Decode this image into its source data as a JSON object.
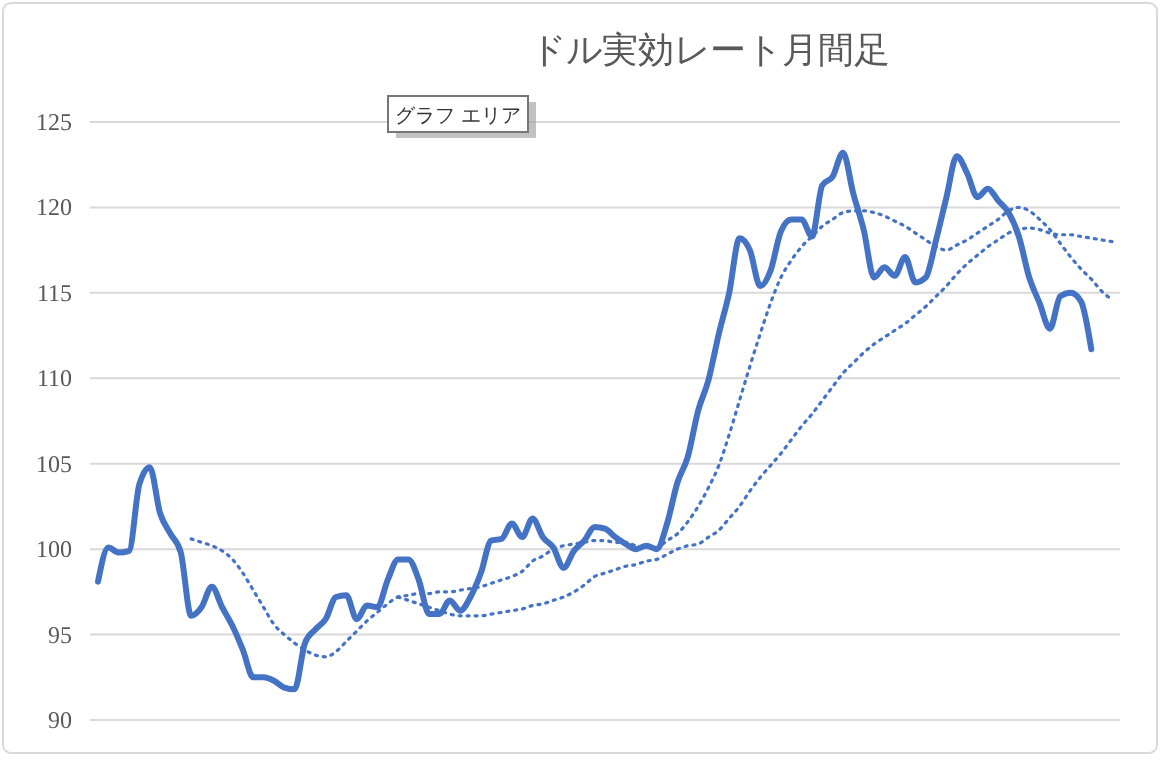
{
  "chart_data": {
    "type": "line",
    "title": "ドル実効レート月間足",
    "categories": [
      null,
      null,
      null,
      null,
      null,
      null,
      null,
      null,
      null,
      null,
      null,
      null,
      null,
      null,
      null,
      null,
      null,
      null,
      null,
      null,
      null,
      null,
      null,
      null,
      null,
      null,
      null,
      null,
      null,
      null,
      null,
      null,
      null,
      null,
      null,
      null,
      null,
      null,
      null,
      null,
      null,
      null,
      null,
      null,
      null,
      null,
      null,
      null,
      null,
      null,
      null,
      null,
      null,
      null,
      null,
      null,
      null,
      null,
      null,
      null,
      null,
      null,
      null,
      null,
      null,
      null,
      null,
      null,
      null,
      null,
      null,
      null,
      null,
      null,
      null,
      null,
      null,
      null,
      null,
      null,
      null,
      null,
      null,
      null,
      null,
      null,
      null,
      null,
      null,
      null,
      null,
      null,
      null,
      null,
      null,
      null,
      null,
      null,
      null
    ],
    "series": [
      {
        "color": "#4472c4",
        "line_style": "solid",
        "values": [
          98.1,
          100.1,
          99.8,
          99.9,
          103.8,
          104.8,
          102.1,
          100.9,
          99.8,
          96.1,
          96.6,
          97.8,
          96.6,
          95.5,
          94.1,
          92.5,
          92.5,
          92.3,
          91.9,
          91.8,
          94.5,
          95.3,
          95.9,
          97.2,
          97.3,
          95.9,
          96.7,
          96.6,
          98.2,
          99.4,
          99.4,
          98.2,
          96.2,
          96.2,
          97.0,
          96.4,
          97.2,
          98.6,
          100.5,
          100.6,
          101.5,
          100.7,
          101.8,
          100.7,
          100.1,
          98.9,
          99.9,
          100.5,
          101.3,
          101.2,
          100.7,
          100.3,
          100.0,
          100.2,
          100.0,
          101.5,
          103.9,
          105.4,
          108.1,
          109.9,
          112.6,
          115.0,
          118.2,
          117.5,
          115.4,
          116.3,
          118.6,
          119.3,
          119.3,
          118.3,
          121.3,
          121.8,
          123.2,
          120.8,
          118.7,
          115.9,
          116.5,
          116.0,
          117.1,
          115.6,
          115.9,
          118.1,
          120.6,
          123.0,
          122.0,
          120.6,
          121.1,
          120.4,
          119.7,
          118.3,
          115.9,
          114.4,
          112.9,
          114.8,
          115.0,
          114.5,
          111.7,
          null,
          null
        ]
      },
      {
        "color": "#4472c4",
        "line_style": "dotted",
        "values": [
          null,
          null,
          null,
          null,
          null,
          null,
          null,
          null,
          null,
          100.6,
          100.4,
          100.2,
          99.9,
          99.4,
          98.6,
          97.6,
          96.6,
          95.6,
          95.0,
          94.5,
          94.1,
          93.8,
          93.7,
          94.0,
          94.6,
          95.2,
          95.8,
          96.3,
          96.8,
          97.2,
          97.3,
          97.4,
          97.4,
          97.5,
          97.5,
          97.6,
          97.7,
          97.8,
          98.0,
          98.2,
          98.4,
          98.7,
          99.3,
          99.6,
          100.0,
          100.2,
          100.3,
          100.4,
          100.5,
          100.5,
          100.4,
          100.4,
          100.2,
          100.1,
          100.1,
          100.5,
          100.9,
          101.6,
          102.5,
          103.6,
          104.9,
          106.7,
          108.7,
          110.7,
          112.6,
          114.4,
          115.9,
          116.9,
          117.7,
          118.3,
          118.9,
          119.3,
          119.7,
          119.8,
          119.8,
          119.7,
          119.5,
          119.2,
          118.9,
          118.5,
          118.1,
          117.7,
          117.5,
          117.8,
          118.1,
          118.5,
          118.9,
          119.3,
          119.8,
          120.0,
          119.8,
          119.3,
          118.7,
          117.9,
          117.1,
          116.4,
          115.8,
          115.1,
          114.6
        ]
      },
      {
        "color": "#4472c4",
        "line_style": "dotted",
        "values": [
          null,
          null,
          null,
          null,
          null,
          null,
          null,
          null,
          null,
          null,
          null,
          null,
          null,
          null,
          null,
          null,
          null,
          null,
          null,
          null,
          null,
          null,
          null,
          null,
          null,
          null,
          null,
          null,
          null,
          97.2,
          97.0,
          96.8,
          96.6,
          96.4,
          96.2,
          96.1,
          96.1,
          96.1,
          96.2,
          96.3,
          96.4,
          96.5,
          96.7,
          96.8,
          97.0,
          97.2,
          97.5,
          97.9,
          98.4,
          98.6,
          98.8,
          99.0,
          99.1,
          99.3,
          99.4,
          99.7,
          100.0,
          100.2,
          100.3,
          100.7,
          101.1,
          101.8,
          102.5,
          103.4,
          104.2,
          104.9,
          105.6,
          106.4,
          107.2,
          107.9,
          108.7,
          109.5,
          110.3,
          110.9,
          111.5,
          112.0,
          112.4,
          112.8,
          113.2,
          113.7,
          114.2,
          114.8,
          115.4,
          116.1,
          116.7,
          117.2,
          117.7,
          118.1,
          118.5,
          118.7,
          118.8,
          118.7,
          118.5,
          118.4,
          118.4,
          118.3,
          118.2,
          118.1,
          118.0
        ]
      }
    ],
    "ylim": [
      90,
      125
    ],
    "yticks": [
      90,
      95,
      100,
      105,
      110,
      115,
      120,
      125
    ],
    "grid": "y",
    "tick_labels": "y",
    "annotations": [
      "グラフ エリア"
    ]
  }
}
